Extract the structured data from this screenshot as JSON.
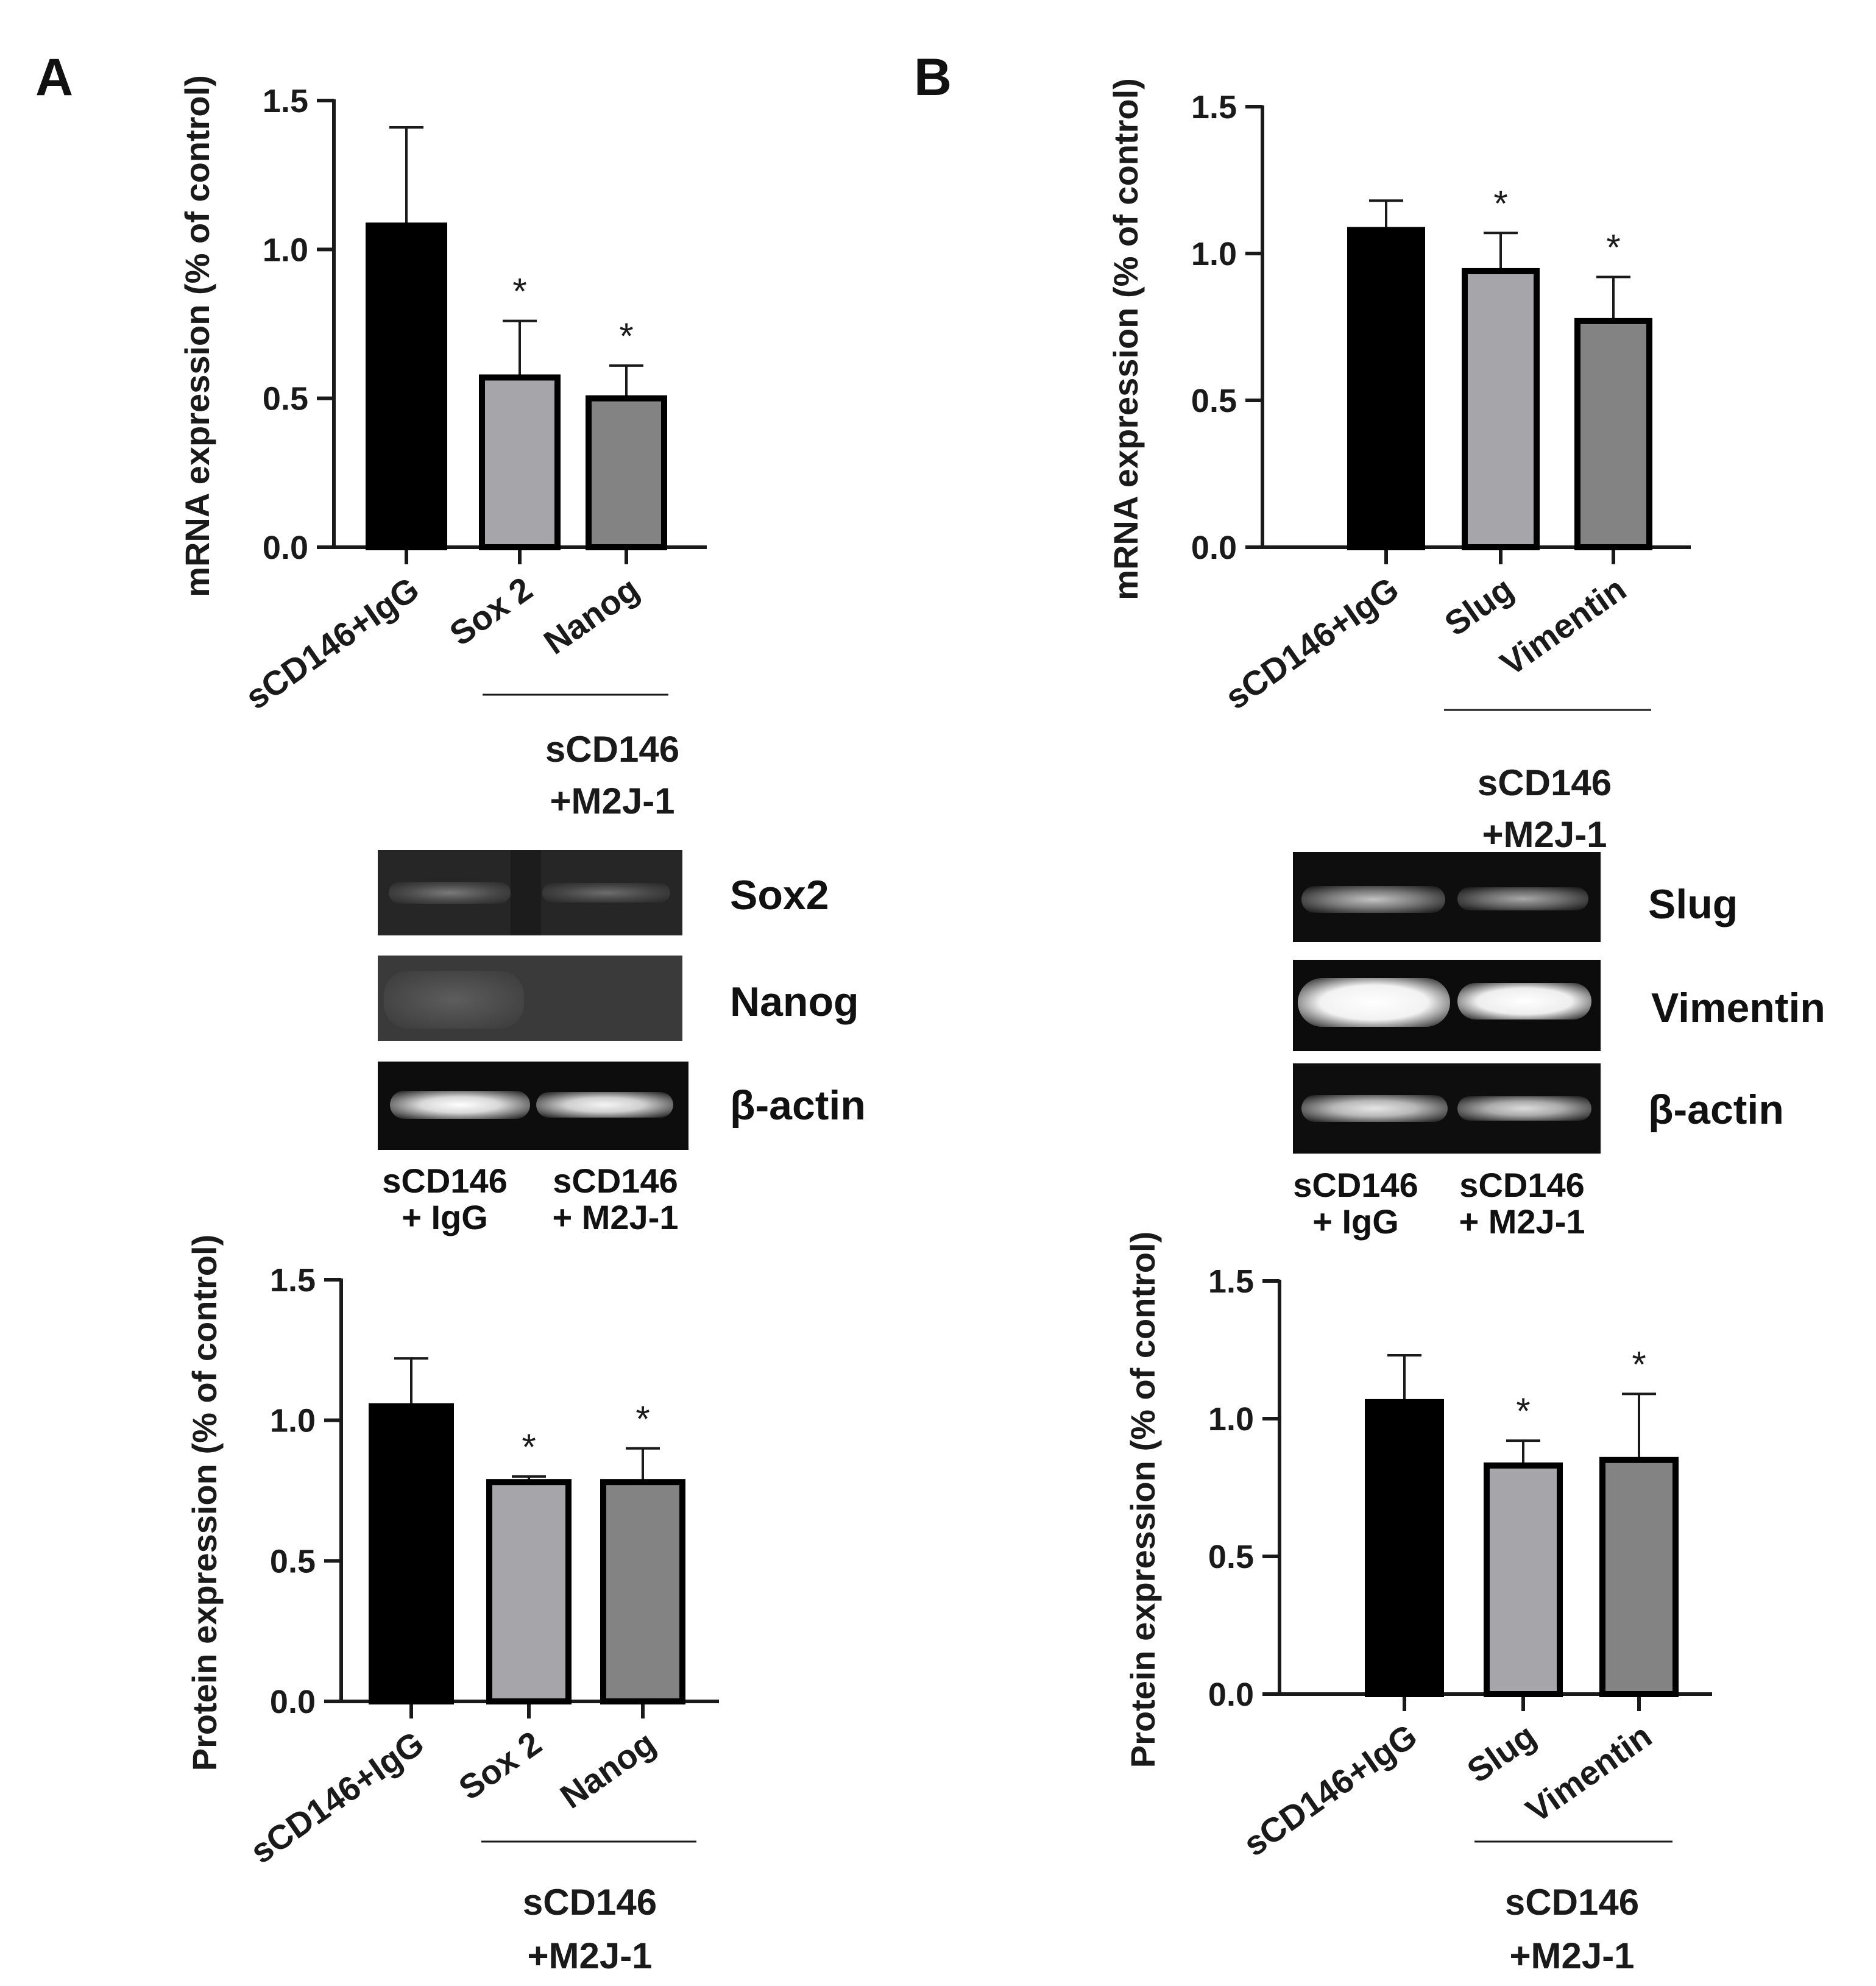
{
  "panels": [
    "A",
    "B"
  ],
  "colors": {
    "black_bar": "#000000",
    "light_gray_bar": "#a6a6aa",
    "dark_gray_bar": "#838383",
    "axis": "#1a1a1a"
  },
  "chart_data": [
    {
      "type": "bar",
      "panel": "A",
      "ylabel": "mRNA expression (% of control)",
      "categories": [
        "sCD146+IgG",
        "Sox 2",
        "Nanog"
      ],
      "values": [
        1.08,
        0.57,
        0.5
      ],
      "errors": [
        0.33,
        0.19,
        0.11
      ],
      "significance": [
        "",
        "*",
        "*"
      ],
      "colors": [
        "#000000",
        "#a6a6aa",
        "#838383"
      ],
      "ylim": [
        0,
        1.5
      ],
      "yticks": [
        "0.0",
        "0.5",
        "1.0",
        "1.5"
      ],
      "group_label": [
        "sCD146",
        "+M2J-1"
      ]
    },
    {
      "type": "bar",
      "panel": "B",
      "ylabel": "mRNA expression (% of control)",
      "categories": [
        "sCD146+IgG",
        "Slug",
        "Vimentin"
      ],
      "values": [
        1.08,
        0.94,
        0.77
      ],
      "errors": [
        0.1,
        0.13,
        0.15
      ],
      "significance": [
        "",
        "*",
        "*"
      ],
      "colors": [
        "#000000",
        "#a6a6aa",
        "#838383"
      ],
      "ylim": [
        0,
        1.5
      ],
      "yticks": [
        "0.0",
        "0.5",
        "1.0",
        "1.5"
      ],
      "group_label": [
        "sCD146",
        "+M2J-1"
      ]
    },
    {
      "type": "bar",
      "panel": "A",
      "ylabel": "Protein expression (% of control)",
      "categories": [
        "sCD146+IgG",
        "Sox 2",
        "Nanog"
      ],
      "values": [
        1.05,
        0.78,
        0.78
      ],
      "errors": [
        0.17,
        0.02,
        0.12
      ],
      "significance": [
        "",
        "*",
        "*"
      ],
      "colors": [
        "#000000",
        "#a6a6aa",
        "#838383"
      ],
      "ylim": [
        0,
        1.5
      ],
      "yticks": [
        "0.0",
        "0.5",
        "1.0",
        "1.5"
      ],
      "group_label": [
        "sCD146",
        "+M2J-1"
      ]
    },
    {
      "type": "bar",
      "panel": "B",
      "ylabel": "Protein expression (% of control)",
      "categories": [
        "sCD146+IgG",
        "Slug",
        "Vimentin"
      ],
      "values": [
        1.06,
        0.83,
        0.85
      ],
      "errors": [
        0.17,
        0.09,
        0.24
      ],
      "significance": [
        "",
        "*",
        "*"
      ],
      "colors": [
        "#000000",
        "#a6a6aa",
        "#838383"
      ],
      "ylim": [
        0,
        1.5
      ],
      "yticks": [
        "0.0",
        "0.5",
        "1.0",
        "1.5"
      ],
      "group_label": [
        "sCD146",
        "+M2J-1"
      ]
    }
  ],
  "blots": {
    "A": {
      "bands": [
        "Sox2",
        "Nanog",
        "β-actin"
      ],
      "lanes": [
        [
          "sCD146",
          "+ IgG"
        ],
        [
          "sCD146",
          "+ M2J-1"
        ]
      ]
    },
    "B": {
      "bands": [
        "Slug",
        "Vimentin",
        "β-actin"
      ],
      "lanes": [
        [
          "sCD146",
          "+ IgG"
        ],
        [
          "sCD146",
          "+ M2J-1"
        ]
      ]
    }
  }
}
